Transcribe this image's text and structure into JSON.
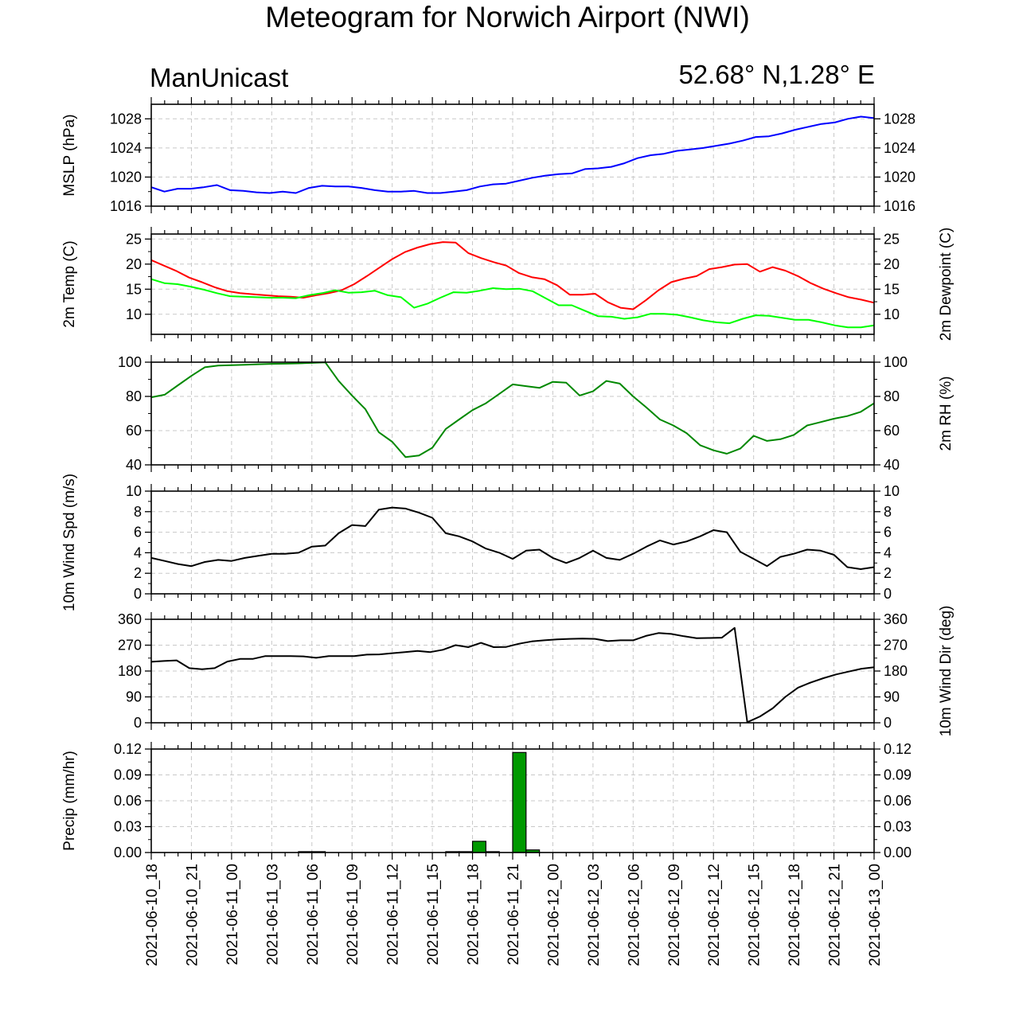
{
  "header": {
    "title": "Meteogram for Norwich Airport (NWI)",
    "model": "ManUnicast",
    "location": "52.68° N,1.28° E"
  },
  "x_ticks": [
    "2021-06-10_18",
    "2021-06-10_21",
    "2021-06-11_00",
    "2021-06-11_03",
    "2021-06-11_06",
    "2021-06-11_09",
    "2021-06-11_12",
    "2021-06-11_15",
    "2021-06-11_18",
    "2021-06-11_21",
    "2021-06-12_00",
    "2021-06-12_03",
    "2021-06-12_06",
    "2021-06-12_09",
    "2021-06-12_12",
    "2021-06-12_15",
    "2021-06-12_18",
    "2021-06-12_21",
    "2021-06-13_00"
  ],
  "chart_data": [
    {
      "type": "line",
      "ylabel": "MSLP (hPa)",
      "ylim": [
        1016,
        1030
      ],
      "yticks": [
        "1016",
        "1020",
        "1024",
        "1028"
      ],
      "x_hours_from_2021-06-10_18": "hourly, 0-54",
      "series": [
        {
          "color": "#0000ff",
          "values": [
            1018.6,
            1018.0,
            1018.4,
            1018.4,
            1018.6,
            1018.9,
            1018.2,
            1018.1,
            1017.9,
            1017.8,
            1018.0,
            1017.8,
            1018.5,
            1018.8,
            1018.7,
            1018.7,
            1018.5,
            1018.2,
            1018.0,
            1018.0,
            1018.1,
            1017.8,
            1017.8,
            1018.0,
            1018.2,
            1018.7,
            1019.0,
            1019.1,
            1019.5,
            1019.9,
            1020.2,
            1020.4,
            1020.5,
            1021.1,
            1021.2,
            1021.4,
            1021.9,
            1022.6,
            1023.0,
            1023.2,
            1023.6,
            1023.8,
            1024.0,
            1024.3,
            1024.6,
            1025.0,
            1025.5,
            1025.6,
            1026.0,
            1026.5,
            1026.9,
            1027.3,
            1027.5,
            1028.0,
            1028.3,
            1028.1
          ]
        }
      ]
    },
    {
      "type": "line",
      "ylabel": "2m Temp (C)",
      "ylabel_right": "2m Dewpoint (C)",
      "ylim": [
        6,
        26
      ],
      "yticks": [
        "10",
        "15",
        "20",
        "25"
      ],
      "series": [
        {
          "color": "#ff0000",
          "values": [
            20.8,
            19.7,
            18.6,
            17.3,
            16.4,
            15.4,
            14.6,
            14.2,
            14.0,
            13.8,
            13.6,
            13.5,
            13.3,
            13.8,
            14.2,
            14.8,
            16.0,
            17.6,
            19.3,
            21.0,
            22.4,
            23.3,
            24.0,
            24.4,
            24.3,
            22.2,
            21.2,
            20.4,
            19.7,
            18.2,
            17.4,
            17.0,
            15.8,
            13.9,
            13.9,
            14.1,
            12.4,
            11.3,
            11.0,
            12.8,
            14.8,
            16.4,
            17.1,
            17.6,
            19.0,
            19.4,
            19.9,
            20.0,
            18.5,
            19.4,
            18.7,
            17.6,
            16.2,
            15.1,
            14.2,
            13.4,
            12.9,
            12.3
          ]
        },
        {
          "color": "#00ff00",
          "values": [
            17.0,
            16.2,
            16.0,
            15.5,
            14.9,
            14.2,
            13.6,
            13.5,
            13.4,
            13.3,
            13.3,
            13.2,
            13.8,
            14.2,
            14.8,
            14.3,
            14.4,
            14.7,
            13.8,
            13.4,
            11.3,
            12.1,
            13.3,
            14.4,
            14.3,
            14.7,
            15.2,
            15.0,
            15.1,
            14.6,
            13.2,
            11.8,
            11.8,
            10.7,
            9.6,
            9.5,
            9.1,
            9.4,
            10.1,
            10.1,
            9.9,
            9.4,
            8.8,
            8.4,
            8.2,
            9.1,
            9.8,
            9.7,
            9.3,
            8.9,
            8.9,
            8.4,
            7.8,
            7.4,
            7.4,
            7.8
          ]
        }
      ]
    },
    {
      "type": "line",
      "ylabel_right": "2m RH (%)",
      "ylim": [
        40,
        100
      ],
      "yticks": [
        "40",
        "60",
        "80",
        "100"
      ],
      "series": [
        {
          "color": "#008800",
          "values": [
            79.5,
            81.0,
            86.5,
            92.0,
            97.0,
            98.0,
            98.3,
            98.5,
            98.8,
            99.0,
            99.1,
            99.3,
            99.6,
            99.9,
            89.0,
            80.5,
            72.5,
            59.0,
            53.5,
            44.5,
            45.5,
            50.0,
            61.0,
            66.5,
            72.0,
            76.0,
            81.5,
            87.0,
            86.0,
            85.0,
            88.5,
            88.0,
            80.5,
            83.0,
            89.0,
            87.5,
            80.0,
            73.5,
            66.5,
            63.0,
            58.5,
            51.5,
            48.5,
            46.5,
            49.5,
            57.0,
            54.0,
            55.0,
            57.5,
            63.0,
            65.0,
            67.0,
            68.5,
            71.0,
            76.0
          ]
        }
      ]
    },
    {
      "type": "line",
      "ylabel": "10m Wind Spd (m/s)",
      "ylim": [
        0,
        10
      ],
      "yticks": [
        "0",
        "2",
        "4",
        "6",
        "8",
        "10"
      ],
      "series": [
        {
          "color": "#000000",
          "values": [
            3.5,
            3.2,
            2.9,
            2.7,
            3.1,
            3.3,
            3.2,
            3.5,
            3.7,
            3.9,
            3.9,
            4.0,
            4.6,
            4.7,
            5.9,
            6.7,
            6.6,
            8.2,
            8.4,
            8.3,
            7.9,
            7.4,
            5.9,
            5.6,
            5.1,
            4.4,
            4.0,
            3.4,
            4.2,
            4.3,
            3.5,
            3.0,
            3.5,
            4.2,
            3.5,
            3.3,
            3.9,
            4.6,
            5.2,
            4.8,
            5.1,
            5.6,
            6.2,
            6.0,
            4.1,
            3.4,
            2.7,
            3.6,
            3.9,
            4.3,
            4.2,
            3.8,
            2.6,
            2.4,
            2.6
          ]
        }
      ]
    },
    {
      "type": "line",
      "ylabel_right": "10m Wind Dir (deg)",
      "ylim": [
        0,
        360
      ],
      "yticks": [
        "0",
        "90",
        "180",
        "270",
        "360"
      ],
      "series": [
        {
          "color": "#000000",
          "values": [
            212,
            215,
            217,
            190,
            186,
            190,
            213,
            222,
            222,
            232,
            232,
            232,
            231,
            226,
            232,
            232,
            232,
            237,
            238,
            242,
            246,
            250,
            246,
            254,
            270,
            263,
            278,
            263,
            264,
            275,
            283,
            287,
            290,
            292,
            293,
            292,
            284,
            287,
            287,
            302,
            312,
            309,
            301,
            294,
            295,
            296,
            330,
            2,
            22,
            50,
            90,
            122,
            140,
            155,
            168,
            178,
            188,
            193
          ]
        }
      ]
    },
    {
      "type": "bar",
      "ylabel": "Precip (mm/hr)",
      "ylim": [
        0,
        0.12
      ],
      "yticks": [
        "0.00",
        "0.03",
        "0.06",
        "0.09",
        "0.12"
      ],
      "bar_color": "#009900",
      "hours": [
        11.5,
        12.5,
        22.5,
        23.5,
        24.5,
        25.5,
        26.5,
        27.5,
        28.5
      ],
      "values": [
        0.001,
        0.001,
        0.001,
        0.001,
        0.013,
        0.001,
        0.0,
        0.116,
        0.003
      ]
    }
  ]
}
